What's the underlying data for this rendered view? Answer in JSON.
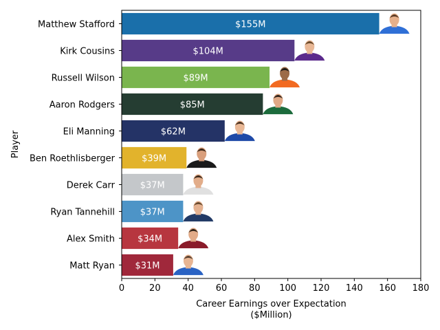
{
  "chart_data": {
    "type": "bar",
    "orientation": "horizontal",
    "title": "",
    "xlabel": "Career Earnings over Expectation",
    "xlabel_line2": "($Million)",
    "ylabel": "Player",
    "xlim": [
      0,
      180
    ],
    "x_ticks": [
      "0",
      "20",
      "40",
      "60",
      "80",
      "100",
      "120",
      "140",
      "160",
      "180"
    ],
    "grid": false,
    "categories": [
      "Matthew Stafford",
      "Kirk Cousins",
      "Russell Wilson",
      "Aaron Rodgers",
      "Eli Manning",
      "Ben Roethlisberger",
      "Derek Carr",
      "Ryan Tannehill",
      "Alex Smith",
      "Matt Ryan"
    ],
    "values": [
      155,
      104,
      89,
      85,
      62,
      39,
      37,
      37,
      34,
      31
    ],
    "value_labels": [
      "$155M",
      "$104M",
      "$89M",
      "$85M",
      "$62M",
      "$39M",
      "$37M",
      "$37M",
      "$34M",
      "$31M"
    ],
    "colors": [
      "#1a6faa",
      "#573b88",
      "#7ab54e",
      "#253d32",
      "#243366",
      "#e2b32c",
      "#c4c7ca",
      "#4d94c7",
      "#b7363f",
      "#a0283b"
    ],
    "avatar_colors": [
      {
        "helmet": "#2f6fd6",
        "skin": "#e6b08b",
        "hair": "#5a3a24"
      },
      {
        "helmet": "#5b2a8c",
        "skin": "#e9b896",
        "hair": "#6a4a2a"
      },
      {
        "helmet": "#f26a21",
        "skin": "#9c6b48",
        "hair": "#1d1a18"
      },
      {
        "helmet": "#1c6b3c",
        "skin": "#e0a986",
        "hair": "#2e241c"
      },
      {
        "helmet": "#1f4aa8",
        "skin": "#e9b896",
        "hair": "#4a321f"
      },
      {
        "helmet": "#1a1a1a",
        "skin": "#d99f7c",
        "hair": "#3a2718"
      },
      {
        "helmet": "#e0e0e0",
        "skin": "#e2ad8a",
        "hair": "#3d2b1d"
      },
      {
        "helmet": "#223a66",
        "skin": "#e4b190",
        "hair": "#6a4c30"
      },
      {
        "helmet": "#8a1b2a",
        "skin": "#e2ab88",
        "hair": "#2f2318"
      },
      {
        "helmet": "#2a63c4",
        "skin": "#e8b593",
        "hair": "#5a4230"
      }
    ],
    "value_label_color": "#ffffff"
  }
}
